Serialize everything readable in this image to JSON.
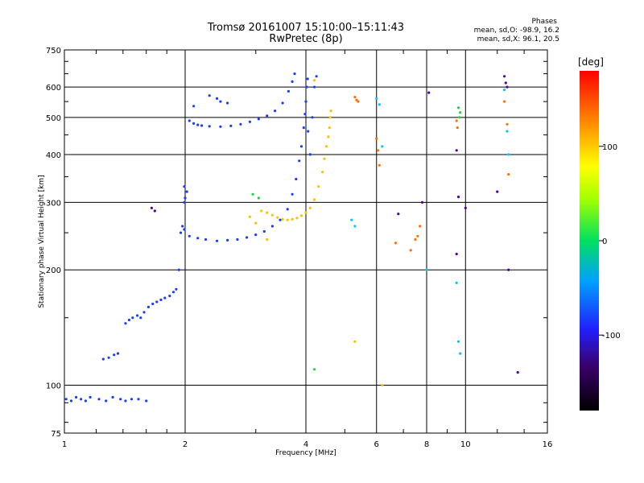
{
  "chart_data": {
    "type": "scatter",
    "title": "Tromsø 20161007 15:10:00–15:11:43",
    "subtitle": "RwPretec (8p)",
    "xlabel": "Frequency [MHz]",
    "ylabel": "Stationary phase Virtual Height [km]",
    "x_scale": "log",
    "y_scale": "log",
    "xlim": [
      1,
      16
    ],
    "ylim": [
      75,
      750
    ],
    "x_ticks": [
      1,
      2,
      4,
      6,
      8,
      10,
      16
    ],
    "y_ticks": [
      75,
      100,
      200,
      300,
      400,
      500,
      600,
      750
    ],
    "grid": true,
    "phase_info": {
      "title": "Phases",
      "o_line": "mean, sd,O: -98.9, 16.2",
      "x_line": "mean, sd,X:  96.1, 20.5"
    },
    "colorbar": {
      "label": "[deg]",
      "range": [
        -180,
        180
      ],
      "ticks": [
        100,
        0,
        -100
      ]
    },
    "series": [
      {
        "color": "#1a3cff",
        "points": [
          [
            1.01,
            92
          ],
          [
            1.04,
            91
          ],
          [
            1.07,
            93
          ],
          [
            1.1,
            92
          ],
          [
            1.13,
            91
          ],
          [
            1.16,
            93
          ],
          [
            1.22,
            92
          ],
          [
            1.27,
            91
          ],
          [
            1.32,
            93
          ],
          [
            1.38,
            92
          ],
          [
            1.42,
            91
          ],
          [
            1.47,
            92
          ],
          [
            1.53,
            92
          ],
          [
            1.6,
            91
          ],
          [
            1.25,
            117
          ],
          [
            1.29,
            118
          ],
          [
            1.33,
            120
          ],
          [
            1.36,
            121
          ],
          [
            1.42,
            145
          ],
          [
            1.45,
            148
          ],
          [
            1.48,
            150
          ],
          [
            1.52,
            152
          ],
          [
            1.55,
            150
          ],
          [
            1.58,
            155
          ],
          [
            1.62,
            160
          ],
          [
            1.66,
            163
          ],
          [
            1.7,
            165
          ],
          [
            1.74,
            167
          ],
          [
            1.78,
            169
          ],
          [
            1.83,
            171
          ],
          [
            1.87,
            175
          ],
          [
            1.9,
            178
          ],
          [
            1.93,
            200
          ],
          [
            1.95,
            250
          ],
          [
            1.97,
            260
          ],
          [
            1.99,
            300
          ],
          [
            2.02,
            320
          ],
          [
            1.99,
            330
          ],
          [
            2.0,
            308
          ],
          [
            1.99,
            255
          ],
          [
            2.05,
            245
          ],
          [
            2.15,
            242
          ],
          [
            2.25,
            240
          ],
          [
            2.4,
            238
          ],
          [
            2.55,
            239
          ],
          [
            2.7,
            240
          ],
          [
            2.85,
            243
          ],
          [
            3.0,
            247
          ],
          [
            3.15,
            252
          ],
          [
            3.3,
            260
          ],
          [
            3.45,
            270
          ],
          [
            3.6,
            288
          ],
          [
            3.7,
            315
          ],
          [
            3.78,
            345
          ],
          [
            3.85,
            385
          ],
          [
            3.9,
            420
          ],
          [
            3.95,
            470
          ],
          [
            3.98,
            510
          ],
          [
            4.0,
            550
          ],
          [
            4.02,
            600
          ],
          [
            4.04,
            630
          ],
          [
            2.05,
            490
          ],
          [
            2.1,
            482
          ],
          [
            2.15,
            478
          ],
          [
            2.2,
            476
          ],
          [
            2.3,
            474
          ],
          [
            2.45,
            473
          ],
          [
            2.6,
            475
          ],
          [
            2.75,
            480
          ],
          [
            2.9,
            487
          ],
          [
            3.05,
            495
          ],
          [
            3.2,
            505
          ],
          [
            3.35,
            520
          ],
          [
            3.5,
            545
          ],
          [
            3.62,
            585
          ],
          [
            3.7,
            620
          ],
          [
            3.75,
            650
          ],
          [
            2.1,
            535
          ],
          [
            2.3,
            570
          ],
          [
            2.4,
            560
          ],
          [
            2.45,
            550
          ],
          [
            2.55,
            545
          ],
          [
            4.05,
            460
          ],
          [
            4.1,
            400
          ],
          [
            4.15,
            500
          ],
          [
            4.2,
            600
          ],
          [
            4.25,
            640
          ]
        ]
      },
      {
        "color": "#ffc000",
        "points": [
          [
            3.1,
            285
          ],
          [
            3.2,
            282
          ],
          [
            3.3,
            278
          ],
          [
            3.4,
            274
          ],
          [
            3.5,
            271
          ],
          [
            3.6,
            270
          ],
          [
            3.7,
            271
          ],
          [
            3.8,
            273
          ],
          [
            3.9,
            277
          ],
          [
            4.0,
            282
          ],
          [
            4.1,
            290
          ],
          [
            4.2,
            305
          ],
          [
            4.3,
            330
          ],
          [
            4.4,
            360
          ],
          [
            4.45,
            390
          ],
          [
            4.5,
            420
          ],
          [
            4.55,
            445
          ],
          [
            4.58,
            470
          ],
          [
            4.6,
            500
          ],
          [
            4.62,
            520
          ],
          [
            2.9,
            275
          ],
          [
            3.0,
            265
          ],
          [
            3.2,
            240
          ],
          [
            4.2,
            625
          ],
          [
            5.3,
            130
          ],
          [
            6.2,
            100
          ]
        ]
      },
      {
        "color": "#ff7000",
        "points": [
          [
            5.3,
            565
          ],
          [
            5.35,
            555
          ],
          [
            5.4,
            550
          ],
          [
            6.0,
            440
          ],
          [
            6.05,
            410
          ],
          [
            6.1,
            375
          ],
          [
            6.7,
            235
          ],
          [
            7.3,
            225
          ],
          [
            7.5,
            240
          ],
          [
            7.6,
            245
          ],
          [
            7.7,
            260
          ],
          [
            9.5,
            490
          ],
          [
            9.55,
            470
          ],
          [
            12.5,
            550
          ],
          [
            12.7,
            480
          ],
          [
            12.8,
            355
          ]
        ]
      },
      {
        "color": "#00c8ff",
        "points": [
          [
            6.0,
            560
          ],
          [
            6.1,
            540
          ],
          [
            6.2,
            420
          ],
          [
            5.2,
            270
          ],
          [
            5.3,
            260
          ],
          [
            8.0,
            200
          ],
          [
            9.5,
            185
          ],
          [
            9.6,
            130
          ],
          [
            9.7,
            121
          ],
          [
            12.5,
            590
          ],
          [
            12.7,
            460
          ],
          [
            12.8,
            400
          ]
        ]
      },
      {
        "color": "#5000a0",
        "points": [
          [
            1.65,
            290
          ],
          [
            1.68,
            285
          ],
          [
            8.1,
            580
          ],
          [
            7.8,
            300
          ],
          [
            9.5,
            410
          ],
          [
            9.6,
            310
          ],
          [
            10.0,
            290
          ],
          [
            12.0,
            320
          ],
          [
            12.5,
            640
          ],
          [
            12.6,
            615
          ],
          [
            12.7,
            600
          ],
          [
            12.8,
            200
          ],
          [
            13.5,
            108
          ],
          [
            6.8,
            280
          ],
          [
            9.5,
            220
          ]
        ]
      },
      {
        "color": "#20d040",
        "points": [
          [
            2.95,
            315
          ],
          [
            3.05,
            308
          ],
          [
            4.2,
            110
          ],
          [
            9.6,
            530
          ],
          [
            9.7,
            515
          ],
          [
            9.65,
            500
          ]
        ]
      }
    ]
  }
}
